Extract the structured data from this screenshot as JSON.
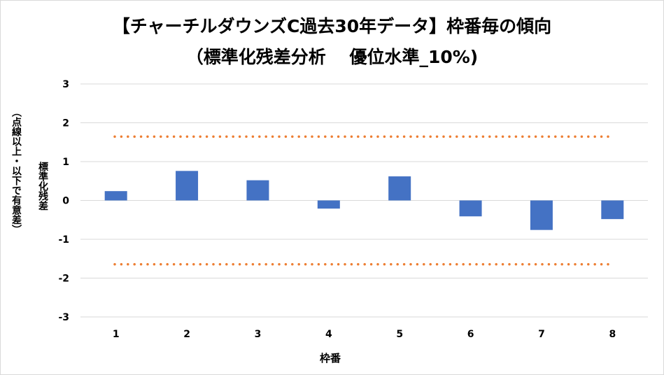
{
  "chart_data": {
    "type": "bar",
    "title_line1": "【チャーチルダウンズC過去30年データ】枠番毎の傾向",
    "title_line2": "（標準化残差分析　 優位水準_10%)",
    "xlabel": "枠番",
    "ylabel_line1": "標準化残差",
    "ylabel_line2": "（点線以上・以下で有意差）",
    "categories": [
      "1",
      "2",
      "3",
      "4",
      "5",
      "6",
      "7",
      "8"
    ],
    "values": [
      0.24,
      0.76,
      0.52,
      -0.21,
      0.62,
      -0.41,
      -0.76,
      -0.48
    ],
    "ylim": [
      -3,
      3
    ],
    "yticks": [
      "3",
      "2",
      "1",
      "0",
      "-1",
      "-2",
      "-3"
    ],
    "threshold_upper": 1.645,
    "threshold_lower": -1.645,
    "grid": true,
    "bar_color": "#4472c4",
    "threshold_color": "#ed7d31",
    "grid_color": "#d9d9d9"
  }
}
